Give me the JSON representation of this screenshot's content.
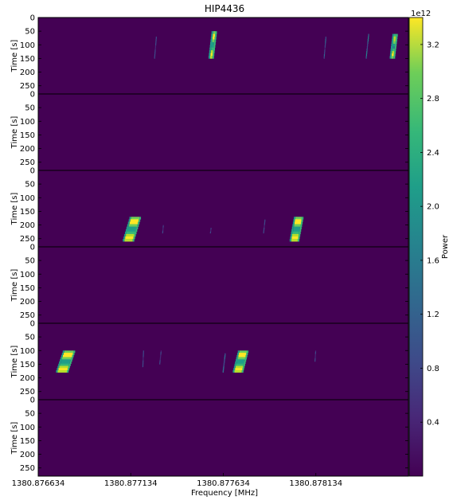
{
  "chart_data": {
    "type": "heatmap",
    "title": "HIP4436",
    "xlabel": "Frequency [MHz]",
    "ylabel": "Time [s]",
    "x_ticks": [
      "1380.876634",
      "1380.877134",
      "1380.877634",
      "1380.878134"
    ],
    "x_tick_values": [
      1380.876634,
      1380.877134,
      1380.877634,
      1380.878134
    ],
    "xlim": [
      1380.876634,
      1380.878634
    ],
    "y_ticks_top_panel": [
      "0",
      "50",
      "100",
      "150",
      "200",
      "250"
    ],
    "y_ticks_other_panels": [
      "0",
      "50",
      "100",
      "150",
      "200",
      "250"
    ],
    "ylim": [
      0,
      280
    ],
    "panel_count": 6,
    "panels": [
      {
        "tracks": [
          {
            "f": 1380.877567,
            "t0": 50,
            "t1": 150,
            "drift": 1.8e-05,
            "width": 1.2e-05,
            "intensity": 1.0
          },
          {
            "f": 1380.877262,
            "t0": 70,
            "t1": 150,
            "drift": 1e-05,
            "width": 4e-06,
            "intensity": 0.25
          },
          {
            "f": 1380.878178,
            "t0": 70,
            "t1": 150,
            "drift": 1e-05,
            "width": 4e-06,
            "intensity": 0.3
          },
          {
            "f": 1380.878405,
            "t0": 60,
            "t1": 150,
            "drift": 1.4e-05,
            "width": 5e-06,
            "intensity": 0.45
          },
          {
            "f": 1380.878546,
            "t0": 60,
            "t1": 150,
            "drift": 1.6e-05,
            "width": 1.2e-05,
            "intensity": 0.95
          }
        ]
      },
      {
        "tracks": []
      },
      {
        "tracks": [
          {
            "f": 1380.877118,
            "t0": 170,
            "t1": 260,
            "drift": 4e-05,
            "width": 4.5e-05,
            "intensity": 1.0
          },
          {
            "f": 1380.877306,
            "t0": 200,
            "t1": 230,
            "drift": 4e-06,
            "width": 4e-06,
            "intensity": 0.2
          },
          {
            "f": 1380.877564,
            "t0": 210,
            "t1": 230,
            "drift": 4e-06,
            "width": 4e-06,
            "intensity": 0.2
          },
          {
            "f": 1380.877851,
            "t0": 180,
            "t1": 230,
            "drift": 8e-06,
            "width": 4e-06,
            "intensity": 0.25
          },
          {
            "f": 1380.878016,
            "t0": 170,
            "t1": 260,
            "drift": 2.5e-05,
            "width": 3.5e-05,
            "intensity": 1.0
          }
        ]
      },
      {
        "tracks": []
      },
      {
        "tracks": [
          {
            "f": 1380.87676,
            "t0": 100,
            "t1": 180,
            "drift": 4e-05,
            "width": 5e-05,
            "intensity": 1.0
          },
          {
            "f": 1380.877199,
            "t0": 100,
            "t1": 160,
            "drift": 4e-06,
            "width": 4e-06,
            "intensity": 0.25
          },
          {
            "f": 1380.87729,
            "t0": 100,
            "t1": 150,
            "drift": 8e-06,
            "width": 4e-06,
            "intensity": 0.2
          },
          {
            "f": 1380.877632,
            "t0": 110,
            "t1": 180,
            "drift": 1.2e-05,
            "width": 6e-06,
            "intensity": 0.35
          },
          {
            "f": 1380.877711,
            "t0": 100,
            "t1": 180,
            "drift": 3e-05,
            "width": 4e-05,
            "intensity": 1.0
          },
          {
            "f": 1380.878129,
            "t0": 100,
            "t1": 140,
            "drift": 4e-06,
            "width": 4e-06,
            "intensity": 0.2
          }
        ]
      },
      {
        "tracks": []
      }
    ],
    "colorbar": {
      "label": "Power",
      "exponent_label": "1e12",
      "ticks": [
        "0.4",
        "0.8",
        "1.2",
        "1.6",
        "2.0",
        "2.4",
        "2.8",
        "3.2"
      ],
      "tick_values": [
        0.4,
        0.8,
        1.2,
        1.6,
        2.0,
        2.4,
        2.8,
        3.2
      ],
      "range": [
        0.0,
        3.4
      ],
      "colormap": "viridis"
    },
    "grid": false
  }
}
